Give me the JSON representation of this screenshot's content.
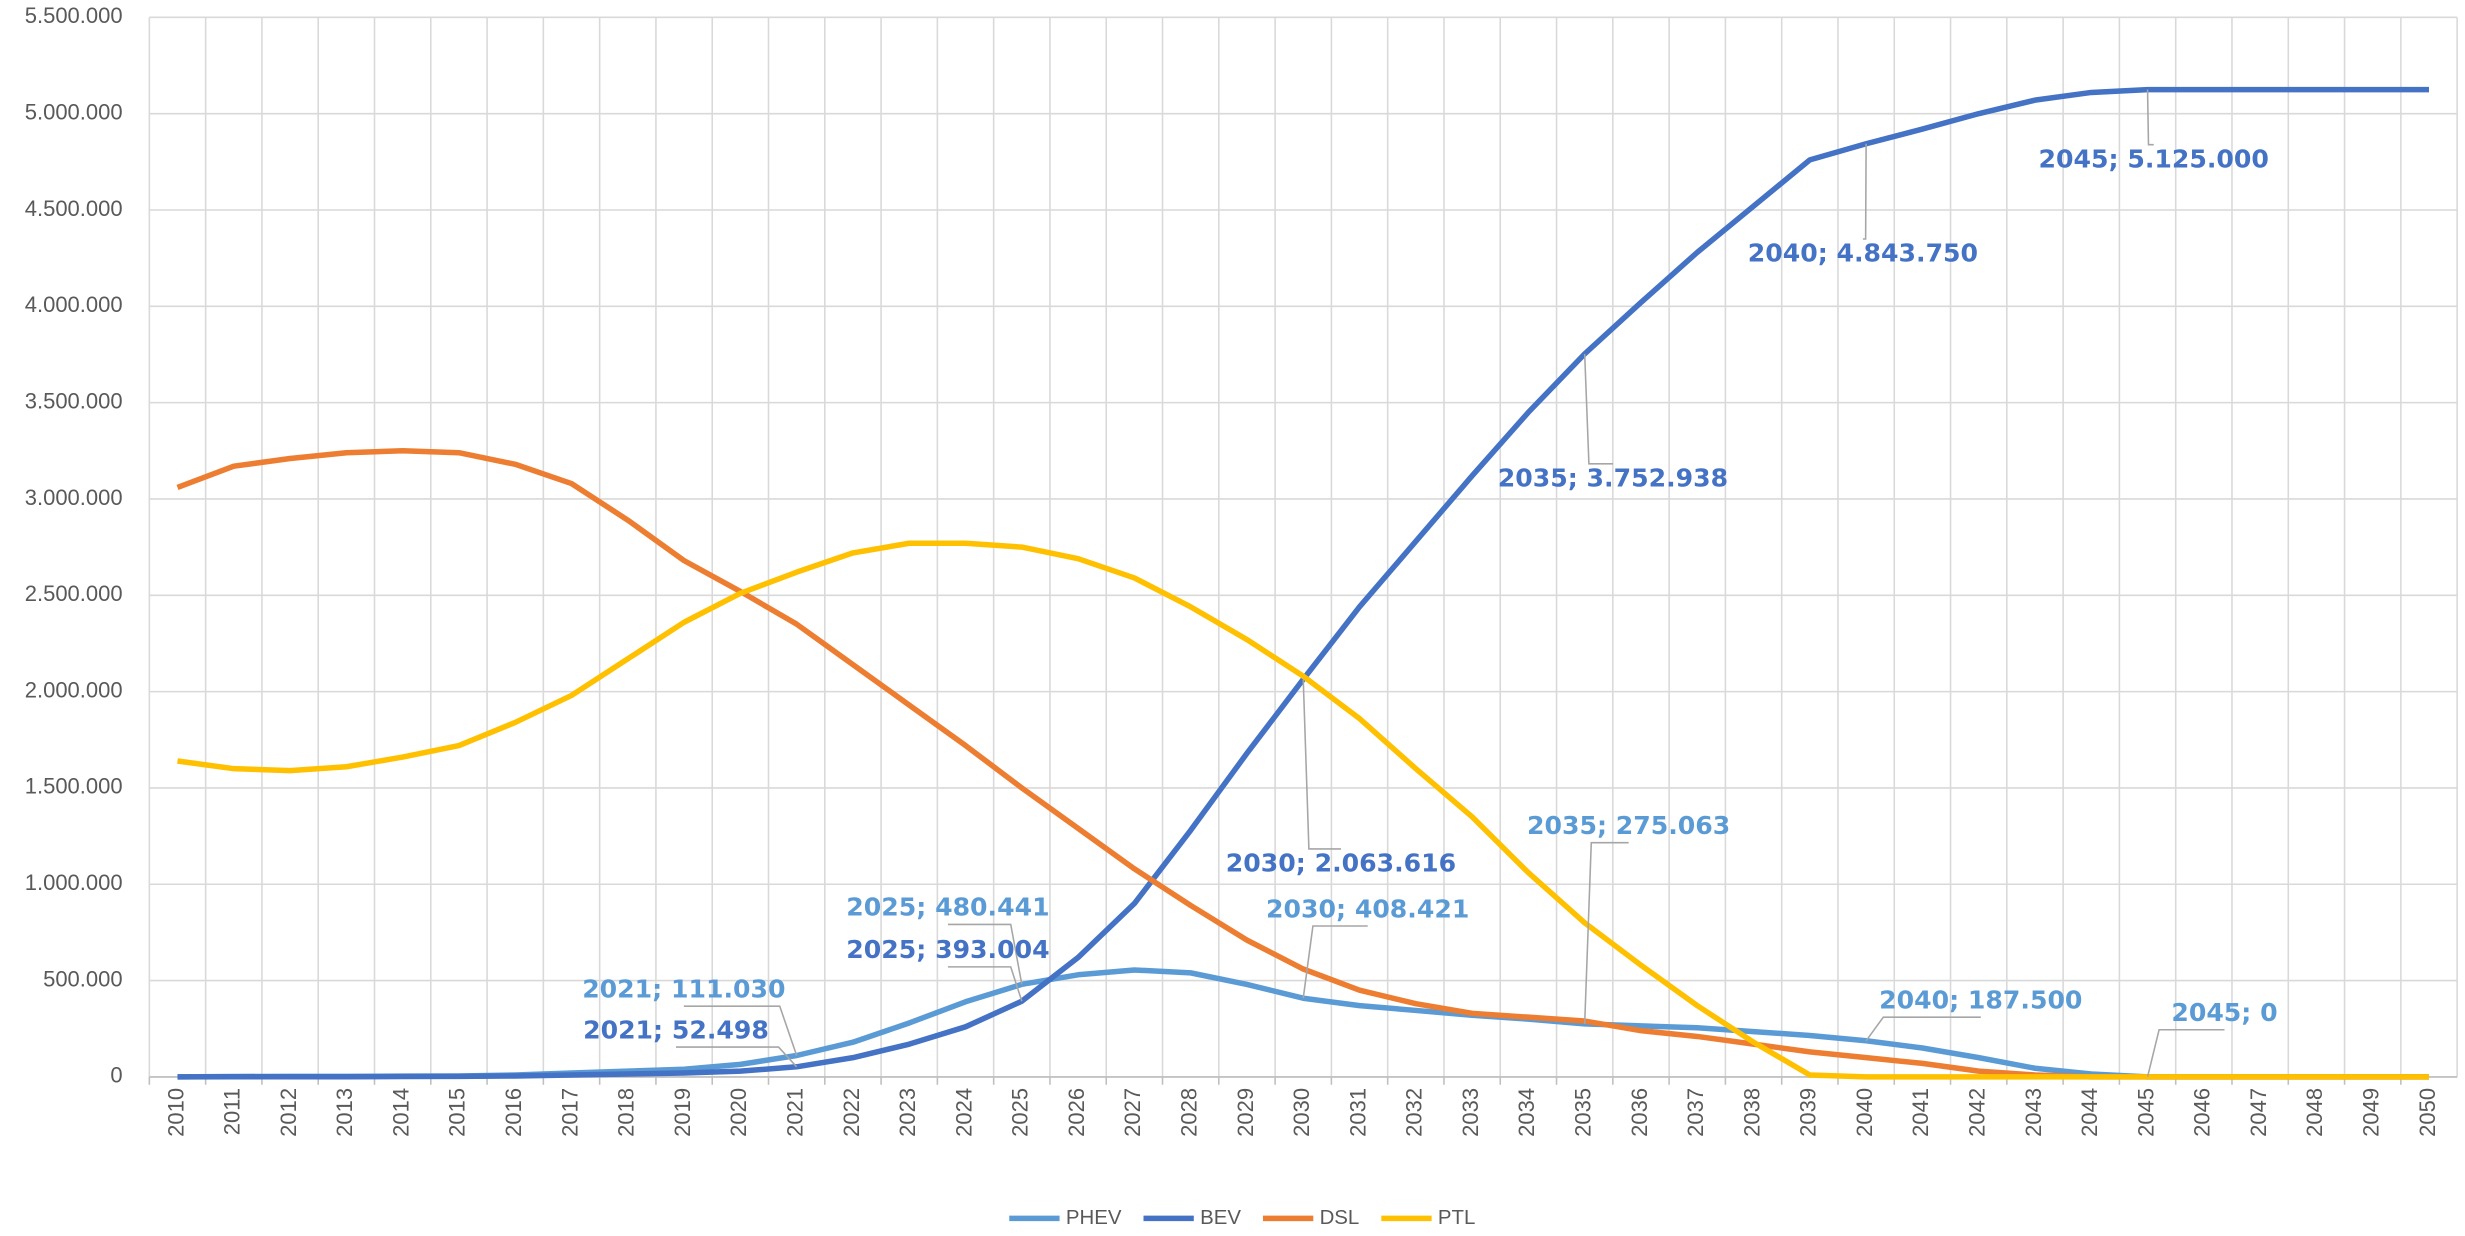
{
  "chart_data": {
    "type": "line",
    "categories": [
      "2010",
      "2011",
      "2012",
      "2013",
      "2014",
      "2015",
      "2016",
      "2017",
      "2018",
      "2019",
      "2020",
      "2021",
      "2022",
      "2023",
      "2024",
      "2025",
      "2026",
      "2027",
      "2028",
      "2029",
      "2030",
      "2031",
      "2032",
      "2033",
      "2034",
      "2035",
      "2036",
      "2037",
      "2038",
      "2039",
      "2040",
      "2041",
      "2042",
      "2043",
      "2044",
      "2045",
      "2046",
      "2047",
      "2048",
      "2049",
      "2050"
    ],
    "ylim": [
      0,
      5500000
    ],
    "yticks": [
      0,
      {
        "value": 500000,
        "label": "500.000"
      },
      {
        "value": 1000000,
        "label": "1.000.000"
      },
      {
        "value": 1500000,
        "label": "1.500.000"
      },
      {
        "value": 2000000,
        "label": "2.000.000"
      },
      {
        "value": 2500000,
        "label": "2.500.000"
      },
      {
        "value": 3000000,
        "label": "3.000.000"
      },
      {
        "value": 3500000,
        "label": "3.500.000"
      },
      {
        "value": 4000000,
        "label": "4.000.000"
      },
      {
        "value": 4500000,
        "label": "4.500.000"
      },
      {
        "value": 5000000,
        "label": "5.000.000"
      },
      {
        "value": 5500000,
        "label": "5.500.000"
      }
    ],
    "grid": true,
    "legend": "bottom",
    "series": [
      {
        "name": "PHEV",
        "color": "#5b9bd5",
        "values": [
          0,
          2000,
          3000,
          3000,
          4000,
          5000,
          10000,
          20000,
          30000,
          40000,
          65000,
          111030,
          180000,
          280000,
          390000,
          480441,
          530000,
          555000,
          540000,
          480000,
          408421,
          370000,
          345000,
          320000,
          300000,
          275063,
          265000,
          255000,
          235000,
          215000,
          187500,
          150000,
          100000,
          45000,
          15000,
          0,
          0,
          0,
          0,
          0,
          0
        ],
        "value_labels": [
          null,
          null,
          null,
          null,
          null,
          null,
          null,
          null,
          null,
          null,
          null,
          "2021; 111.030",
          null,
          null,
          null,
          "2025; 480.441",
          null,
          null,
          null,
          null,
          "2030; 408.421",
          null,
          null,
          null,
          null,
          "2035; 275.063",
          null,
          null,
          null,
          null,
          "2040; 187.500",
          null,
          null,
          null,
          null,
          "2045; 0",
          null,
          null,
          null,
          null,
          null
        ]
      },
      {
        "name": "BEV",
        "color": "#4472c4",
        "values": [
          0,
          1000,
          1000,
          1000,
          2000,
          3000,
          5000,
          10000,
          15000,
          20000,
          30000,
          52498,
          100000,
          170000,
          260000,
          393004,
          620000,
          900000,
          1280000,
          1680000,
          2063616,
          2440000,
          2780000,
          3120000,
          3450000,
          3752938,
          4020000,
          4280000,
          4520000,
          4760000,
          4843750,
          4920000,
          5000000,
          5070000,
          5110000,
          5125000,
          5125000,
          5125000,
          5125000,
          5125000,
          5125000
        ],
        "value_labels": [
          null,
          null,
          null,
          null,
          null,
          null,
          null,
          null,
          null,
          null,
          null,
          "2021; 52.498",
          null,
          null,
          null,
          "2025; 393.004",
          null,
          null,
          null,
          null,
          "2030; 2.063.616",
          null,
          null,
          null,
          null,
          "2035; 3.752.938",
          null,
          null,
          null,
          null,
          "2040; 4.843.750",
          null,
          null,
          null,
          null,
          "2045; 5.125.000",
          null,
          null,
          null,
          null,
          null
        ]
      },
      {
        "name": "DSL",
        "color": "#ed7d31",
        "values": [
          3060000,
          3170000,
          3210000,
          3240000,
          3250000,
          3240000,
          3180000,
          3080000,
          2890000,
          2680000,
          2520000,
          2350000,
          2140000,
          1930000,
          1720000,
          1500000,
          1290000,
          1080000,
          890000,
          710000,
          560000,
          450000,
          380000,
          330000,
          310000,
          290000,
          240000,
          210000,
          170000,
          130000,
          100000,
          70000,
          30000,
          10000,
          0,
          0,
          0,
          0,
          0,
          0,
          0
        ]
      },
      {
        "name": "PTL",
        "color": "#ffc000",
        "values": [
          1640000,
          1600000,
          1590000,
          1610000,
          1660000,
          1720000,
          1840000,
          1980000,
          2170000,
          2360000,
          2510000,
          2620000,
          2720000,
          2770000,
          2770000,
          2750000,
          2690000,
          2590000,
          2440000,
          2270000,
          2080000,
          1860000,
          1600000,
          1350000,
          1060000,
          800000,
          580000,
          370000,
          180000,
          10000,
          0,
          0,
          0,
          0,
          0,
          0,
          0,
          0,
          0,
          0,
          0
        ]
      }
    ]
  }
}
